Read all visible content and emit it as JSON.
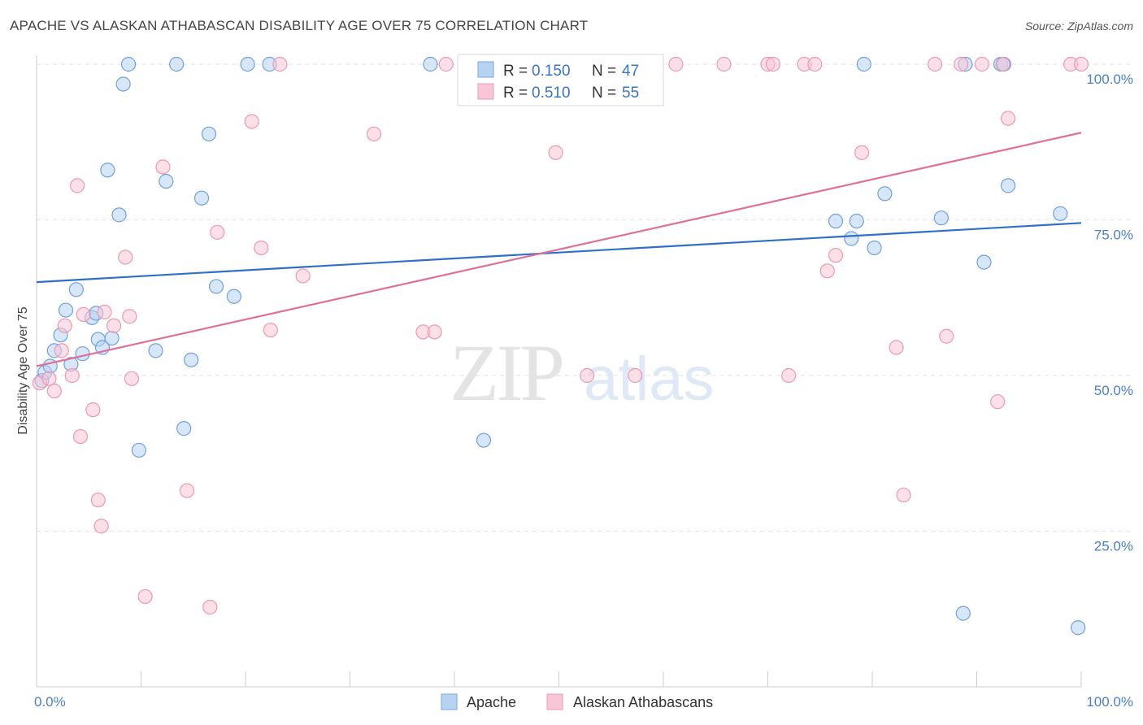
{
  "title": "APACHE VS ALASKAN ATHABASCAN DISABILITY AGE OVER 75 CORRELATION CHART",
  "source": "Source: ZipAtlas.com",
  "watermark": {
    "zip": "ZIP",
    "atlas": "atlas"
  },
  "legend": {
    "r_label": "R =",
    "n_label": "N =",
    "entries": [
      {
        "r": "0.150",
        "n": "47",
        "fill": "#b8d3f2",
        "stroke": "#7aa7e0"
      },
      {
        "r": "0.510",
        "n": "55",
        "fill": "#f8c6d6",
        "stroke": "#ec98b4"
      }
    ]
  },
  "chart_data": {
    "type": "scatter",
    "title": "APACHE VS ALASKAN ATHABASCAN DISABILITY AGE OVER 75 CORRELATION CHART",
    "xlabel": "",
    "ylabel": "Disability Age Over 75",
    "xlim": [
      0,
      100
    ],
    "ylim": [
      0,
      105
    ],
    "x_tick_labels": [
      "0.0%",
      "100.0%"
    ],
    "y_ticks": [
      {
        "value": 25,
        "label": "25.0%"
      },
      {
        "value": 50,
        "label": "50.0%"
      },
      {
        "value": 75,
        "label": "75.0%"
      },
      {
        "value": 100,
        "label": "100.0%"
      }
    ],
    "grid": true,
    "legend_position": "top-center",
    "series": [
      {
        "name": "Apache",
        "color": "#6fa0de",
        "fill": "#b8d3f2",
        "trend": {
          "x": [
            0,
            100
          ],
          "y": [
            65.0,
            74.5
          ],
          "color": "#2f6fcb"
        },
        "points": [
          [
            0.5,
            49.2
          ],
          [
            0.8,
            50.5
          ],
          [
            1.3,
            51.5
          ],
          [
            1.7,
            54.0
          ],
          [
            2.3,
            56.5
          ],
          [
            2.8,
            60.5
          ],
          [
            3.3,
            51.8
          ],
          [
            3.8,
            63.8
          ],
          [
            4.4,
            53.5
          ],
          [
            5.3,
            59.3
          ],
          [
            5.7,
            60.0
          ],
          [
            5.9,
            55.8
          ],
          [
            6.3,
            54.5
          ],
          [
            7.2,
            56.0
          ],
          [
            6.8,
            83.0
          ],
          [
            7.9,
            75.8
          ],
          [
            8.3,
            96.8
          ],
          [
            8.8,
            100.0
          ],
          [
            9.8,
            38.0
          ],
          [
            11.4,
            54.0
          ],
          [
            12.4,
            81.2
          ],
          [
            13.4,
            100.0
          ],
          [
            14.1,
            41.5
          ],
          [
            14.8,
            52.5
          ],
          [
            15.8,
            78.5
          ],
          [
            16.5,
            88.8
          ],
          [
            17.2,
            64.3
          ],
          [
            18.9,
            62.7
          ],
          [
            20.2,
            100.0
          ],
          [
            22.3,
            100.0
          ],
          [
            37.7,
            100.0
          ],
          [
            42.8,
            39.6
          ],
          [
            76.5,
            74.8
          ],
          [
            78.0,
            72.0
          ],
          [
            78.5,
            74.8
          ],
          [
            79.2,
            100.0
          ],
          [
            80.2,
            70.5
          ],
          [
            81.2,
            79.2
          ],
          [
            86.6,
            75.3
          ],
          [
            88.7,
            11.8
          ],
          [
            88.9,
            100.0
          ],
          [
            90.7,
            68.2
          ],
          [
            92.3,
            100.0
          ],
          [
            92.6,
            100.0
          ],
          [
            93.0,
            80.5
          ],
          [
            98.0,
            76.0
          ],
          [
            99.7,
            9.5
          ]
        ]
      },
      {
        "name": "Alaskan Athabascans",
        "color": "#ec98b4",
        "fill": "#f8c6d6",
        "trend": {
          "x": [
            0,
            100
          ],
          "y": [
            51.5,
            89.0
          ],
          "color": "#e07099"
        },
        "points": [
          [
            0.3,
            48.8
          ],
          [
            1.2,
            49.5
          ],
          [
            1.7,
            47.5
          ],
          [
            2.4,
            54.0
          ],
          [
            2.7,
            58.0
          ],
          [
            3.4,
            50.0
          ],
          [
            3.9,
            80.5
          ],
          [
            4.2,
            40.2
          ],
          [
            4.5,
            59.8
          ],
          [
            5.4,
            44.5
          ],
          [
            5.9,
            30.0
          ],
          [
            6.2,
            25.8
          ],
          [
            6.5,
            60.2
          ],
          [
            7.4,
            58.0
          ],
          [
            8.5,
            69.0
          ],
          [
            8.9,
            59.5
          ],
          [
            9.1,
            49.5
          ],
          [
            10.4,
            14.5
          ],
          [
            12.1,
            83.5
          ],
          [
            14.4,
            31.5
          ],
          [
            16.6,
            12.8
          ],
          [
            17.3,
            73.0
          ],
          [
            20.6,
            90.8
          ],
          [
            21.5,
            70.5
          ],
          [
            22.4,
            57.3
          ],
          [
            23.3,
            100.0
          ],
          [
            25.5,
            66.0
          ],
          [
            32.3,
            88.8
          ],
          [
            37.0,
            57.0
          ],
          [
            38.1,
            57.0
          ],
          [
            39.2,
            100.0
          ],
          [
            49.7,
            85.8
          ],
          [
            52.7,
            50.0
          ],
          [
            57.3,
            50.0
          ],
          [
            61.2,
            100.0
          ],
          [
            65.8,
            100.0
          ],
          [
            70.0,
            100.0
          ],
          [
            70.5,
            100.0
          ],
          [
            72.0,
            50.0
          ],
          [
            73.5,
            100.0
          ],
          [
            74.5,
            100.0
          ],
          [
            75.7,
            66.8
          ],
          [
            76.5,
            69.3
          ],
          [
            79.0,
            85.8
          ],
          [
            82.3,
            54.5
          ],
          [
            83.0,
            30.8
          ],
          [
            86.0,
            100.0
          ],
          [
            87.1,
            56.3
          ],
          [
            88.5,
            100.0
          ],
          [
            90.5,
            100.0
          ],
          [
            92.0,
            45.8
          ],
          [
            92.5,
            100.0
          ],
          [
            93.0,
            91.3
          ],
          [
            99.0,
            100.0
          ],
          [
            100.0,
            100.0
          ]
        ]
      }
    ]
  }
}
